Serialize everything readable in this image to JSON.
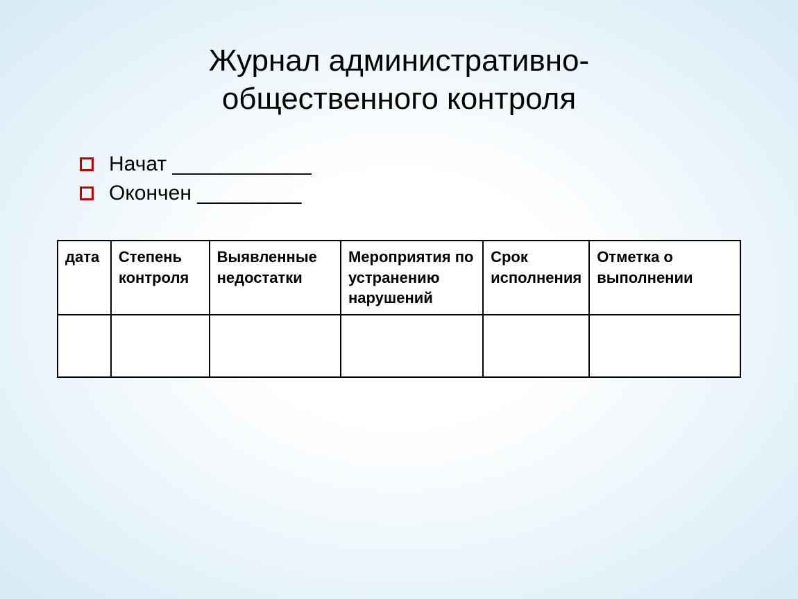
{
  "title": {
    "line1": "Журнал административно-",
    "line2": "общественного контроля",
    "fontsize": 44,
    "color": "#000000"
  },
  "bullets": {
    "marker_color": "#c00000",
    "marker_border_width": 3,
    "items": [
      {
        "label": "Начат ____________"
      },
      {
        "label": "Окончен _________"
      }
    ],
    "fontsize": 30
  },
  "table": {
    "type": "table",
    "border_color": "#000000",
    "border_width": 2,
    "background_color": "#ffffff",
    "header_fontsize": 22,
    "header_fontweight": "bold",
    "columns": [
      {
        "label": "дата",
        "width": "8%"
      },
      {
        "label": "Степень контроля",
        "width": "15%"
      },
      {
        "label": "Выявленные недостатки",
        "width": "20%"
      },
      {
        "label": "Мероприятия по устранению нарушений",
        "width": "22%"
      },
      {
        "label": "Срок исполнения",
        "width": "11%"
      },
      {
        "label": "Отметка о выполнении",
        "width": "24%"
      }
    ],
    "rows": [
      [
        "",
        "",
        "",
        "",
        "",
        ""
      ]
    ]
  },
  "background": {
    "gradient_inner": "#ffffff",
    "gradient_outer": "#d6ebf5"
  }
}
